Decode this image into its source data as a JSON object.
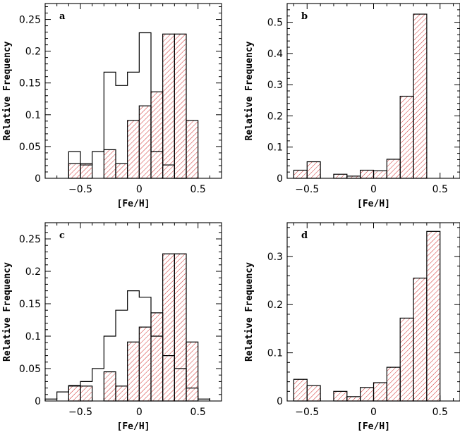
{
  "colors": {
    "hatch": "#cc1111",
    "outline": "#000000"
  },
  "chart_data": [
    {
      "type": "bar",
      "panel_label": "a",
      "xlabel": "[Fe/H]",
      "ylabel": "Relative Frequency",
      "xlim": [
        -0.8,
        0.7
      ],
      "ylim": [
        0,
        0.275
      ],
      "xticks": [
        -0.5,
        0,
        0.5
      ],
      "xtick_labels": [
        "−0.5",
        "0",
        "0.5"
      ],
      "yticks": [
        0,
        0.05,
        0.1,
        0.15,
        0.2,
        0.25
      ],
      "ytick_labels": [
        "0",
        "0.05",
        "0.1",
        "0.15",
        "0.2",
        "0.25"
      ],
      "bin_width": 0.1,
      "series": [
        {
          "style": "outline",
          "bin_starts": [
            -0.6,
            -0.5,
            -0.4,
            -0.3,
            -0.2,
            -0.1,
            0.0,
            0.1,
            0.2,
            0.3
          ],
          "values": [
            0.042,
            0.021,
            0.042,
            0.167,
            0.146,
            0.167,
            0.229,
            0.042,
            0.021,
            0.0
          ]
        },
        {
          "style": "hatched",
          "bin_starts": [
            -0.6,
            -0.5,
            -0.4,
            -0.3,
            -0.2,
            -0.1,
            0.0,
            0.1,
            0.2,
            0.3,
            0.4
          ],
          "values": [
            0.023,
            0.023,
            0.0,
            0.045,
            0.023,
            0.091,
            0.114,
            0.136,
            0.227,
            0.227,
            0.091
          ]
        }
      ]
    },
    {
      "type": "bar",
      "panel_label": "b",
      "xlabel": "[Fe/H]",
      "ylabel": "Relative Frequency",
      "xlim": [
        -0.65,
        0.65
      ],
      "ylim": [
        0,
        0.56
      ],
      "xticks": [
        -0.5,
        0,
        0.5
      ],
      "xtick_labels": [
        "−0.5",
        "0",
        "0.5"
      ],
      "yticks": [
        0,
        0.1,
        0.2,
        0.3,
        0.4,
        0.5
      ],
      "ytick_labels": [
        "0",
        "0.1",
        "0.2",
        "0.3",
        "0.4",
        "0.5"
      ],
      "bin_width": 0.1,
      "series": [
        {
          "style": "hatched",
          "bin_starts": [
            -0.6,
            -0.5,
            -0.4,
            -0.3,
            -0.2,
            -0.1,
            0.0,
            0.1,
            0.2,
            0.3
          ],
          "values": [
            0.026,
            0.053,
            0.0,
            0.013,
            0.007,
            0.026,
            0.024,
            0.061,
            0.263,
            0.526
          ]
        }
      ]
    },
    {
      "type": "bar",
      "panel_label": "c",
      "xlabel": "[Fe/H]",
      "ylabel": "Relative Frequency",
      "xlim": [
        -0.8,
        0.7
      ],
      "ylim": [
        0,
        0.275
      ],
      "xticks": [
        -0.5,
        0,
        0.5
      ],
      "xtick_labels": [
        "−0.5",
        "0",
        "0.5"
      ],
      "yticks": [
        0,
        0.05,
        0.1,
        0.15,
        0.2,
        0.25
      ],
      "ytick_labels": [
        "0",
        "0.05",
        "0.1",
        "0.15",
        "0.2",
        "0.25"
      ],
      "bin_width": 0.1,
      "series": [
        {
          "style": "outline",
          "bin_starts": [
            -0.8,
            -0.7,
            -0.6,
            -0.5,
            -0.4,
            -0.3,
            -0.2,
            -0.1,
            0.0,
            0.1,
            0.2,
            0.3,
            0.4,
            0.5
          ],
          "values": [
            0.003,
            0.014,
            0.024,
            0.03,
            0.05,
            0.1,
            0.14,
            0.17,
            0.16,
            0.1,
            0.07,
            0.05,
            0.02,
            0.003
          ]
        },
        {
          "style": "hatched",
          "bin_starts": [
            -0.6,
            -0.5,
            -0.4,
            -0.3,
            -0.2,
            -0.1,
            0.0,
            0.1,
            0.2,
            0.3,
            0.4
          ],
          "values": [
            0.023,
            0.023,
            0.0,
            0.045,
            0.023,
            0.091,
            0.114,
            0.136,
            0.227,
            0.227,
            0.091
          ]
        }
      ]
    },
    {
      "type": "bar",
      "panel_label": "d",
      "xlabel": "[Fe/H]",
      "ylabel": "Relative Frequency",
      "xlim": [
        -0.65,
        0.65
      ],
      "ylim": [
        0,
        0.37
      ],
      "xticks": [
        -0.5,
        0,
        0.5
      ],
      "xtick_labels": [
        "−0.5",
        "0",
        "0.5"
      ],
      "yticks": [
        0,
        0.1,
        0.2,
        0.3
      ],
      "ytick_labels": [
        "0",
        "0.1",
        "0.2",
        "0.3"
      ],
      "bin_width": 0.1,
      "series": [
        {
          "style": "hatched",
          "bin_starts": [
            -0.6,
            -0.5,
            -0.4,
            -0.3,
            -0.2,
            -0.1,
            0.0,
            0.1,
            0.2,
            0.3,
            0.4
          ],
          "values": [
            0.045,
            0.032,
            0.0,
            0.02,
            0.009,
            0.028,
            0.038,
            0.07,
            0.172,
            0.255,
            0.352
          ]
        }
      ]
    }
  ]
}
